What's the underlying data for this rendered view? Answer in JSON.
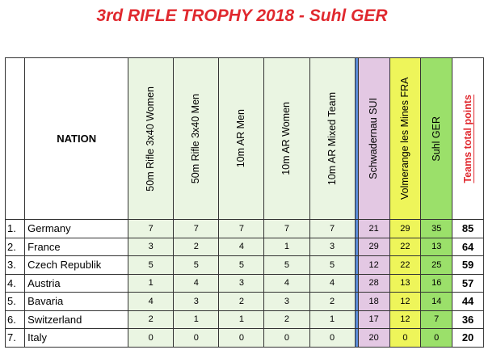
{
  "title": "3rd RIFLE TROPHY 2018 - Suhl GER",
  "header": {
    "nation": "NATION",
    "events": [
      "50m Rifle 3x40 Women",
      "50m Rifle 3x40 Men",
      "10m AR Men",
      "10m AR Women",
      "10m AR Mixed Team"
    ],
    "venues": [
      "Schwadernau SUI",
      "Volmerange les Mines FRA",
      "Suhl GER"
    ],
    "total": "Teams total points"
  },
  "colors": {
    "title": "#e0282e",
    "events_bg": "#eaf5e2",
    "schwadernau_bg": "#e3c8e3",
    "volmerange_bg": "#eef55a",
    "suhl_bg": "#9be06a",
    "divider": "#5b8bd6",
    "total_head": "#e0282e"
  },
  "rows": [
    {
      "rank": "1.",
      "nation": "Germany",
      "events": [
        "7",
        "7",
        "7",
        "7",
        "7"
      ],
      "venues": [
        "21",
        "29",
        "35"
      ],
      "total": "85"
    },
    {
      "rank": "2.",
      "nation": "France",
      "events": [
        "3",
        "2",
        "4",
        "1",
        "3"
      ],
      "venues": [
        "29",
        "22",
        "13"
      ],
      "total": "64"
    },
    {
      "rank": "3.",
      "nation": "Czech Republik",
      "events": [
        "5",
        "5",
        "5",
        "5",
        "5"
      ],
      "venues": [
        "12",
        "22",
        "25"
      ],
      "total": "59"
    },
    {
      "rank": "4.",
      "nation": "Austria",
      "events": [
        "1",
        "4",
        "3",
        "4",
        "4"
      ],
      "venues": [
        "28",
        "13",
        "16"
      ],
      "total": "57"
    },
    {
      "rank": "5.",
      "nation": "Bavaria",
      "events": [
        "4",
        "3",
        "2",
        "3",
        "2"
      ],
      "venues": [
        "18",
        "12",
        "14"
      ],
      "total": "44"
    },
    {
      "rank": "6.",
      "nation": "Switzerland",
      "events": [
        "2",
        "1",
        "1",
        "2",
        "1"
      ],
      "venues": [
        "17",
        "12",
        "7"
      ],
      "total": "36"
    },
    {
      "rank": "7.",
      "nation": "Italy",
      "events": [
        "0",
        "0",
        "0",
        "0",
        "0"
      ],
      "venues": [
        "20",
        "0",
        "0"
      ],
      "total": "20"
    }
  ]
}
